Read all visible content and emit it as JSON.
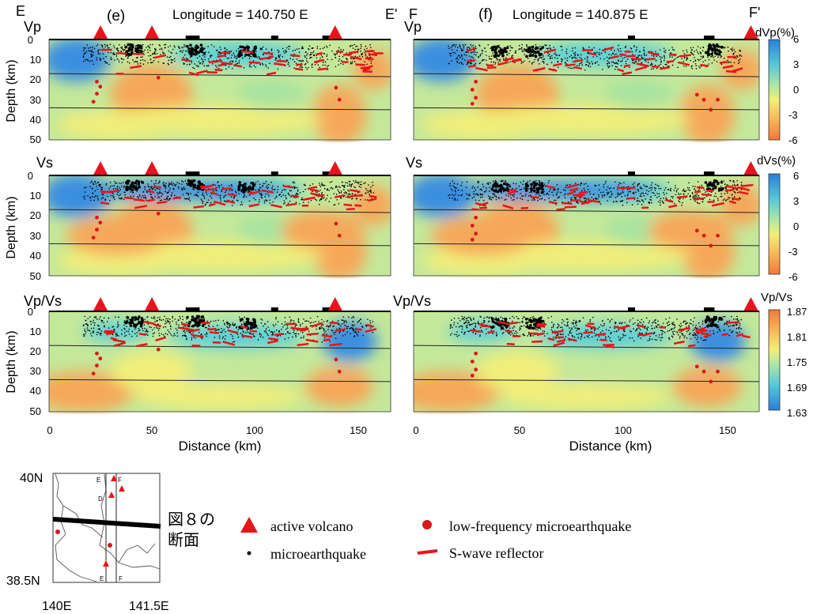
{
  "sections": {
    "left": {
      "panel_label": "(e)",
      "header": "Longitude = 140.750 E",
      "start_label": "E",
      "end_label": "E'",
      "x_ticks": [
        "0",
        "50",
        "100",
        "150"
      ],
      "volcano_km": [
        25,
        50,
        139
      ]
    },
    "right": {
      "panel_label": "(f)",
      "header": "Longitude = 140.875 E",
      "start_label": "F",
      "end_label": "F'",
      "x_ticks": [
        "0",
        "50",
        "100",
        "150"
      ],
      "volcano_km": [
        162
      ]
    }
  },
  "rows": [
    {
      "label": "Vp",
      "colorbar": {
        "title": "dVp(%)",
        "ticks": [
          "6",
          "3",
          "0",
          "-3",
          "-6"
        ]
      }
    },
    {
      "label": "Vs",
      "colorbar": {
        "title": "dVs(%)",
        "ticks": [
          "6",
          "3",
          "0",
          "-3",
          "-6"
        ]
      }
    },
    {
      "label": "Vp/Vs",
      "colorbar": {
        "title": "Vp/Vs",
        "ticks": [
          "1.87",
          "1.81",
          "1.75",
          "1.69",
          "1.63"
        ]
      }
    }
  ],
  "axes": {
    "y_label": "Depth (km)",
    "y_ticks": [
      "0",
      "10",
      "20",
      "30",
      "40",
      "50"
    ],
    "x_label": "Distance (km)"
  },
  "map": {
    "lat_top": "40N",
    "lat_bottom": "38.5N",
    "lon_left": "140E",
    "lon_right": "141.5E",
    "line_labels": {
      "E": "E",
      "F": "F",
      "D": "D"
    },
    "annotation": "図８の 断面"
  },
  "legend": {
    "active_volcano": "active volcano",
    "microearthquake": "microearthquake",
    "lf_microearthquake": "low-frequency microearthquake",
    "s_wave_reflector": "S-wave reflector"
  },
  "colors": {
    "volcano": "#e8141b",
    "lfe": "#d7191c",
    "reflector": "#e8141b",
    "quake": "#000000"
  }
}
